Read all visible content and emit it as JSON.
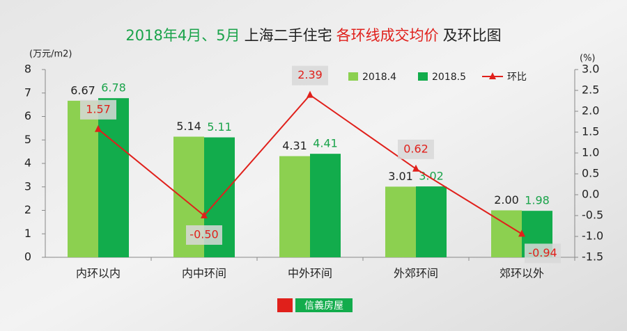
{
  "chart_data": {
    "type": "bar-line",
    "title": [
      "2018年4月、5月",
      "上海二手住宅",
      "各环线成交均价",
      "及环比图"
    ],
    "title_colors": [
      "#1aa34a",
      "#222222",
      "#e0201b",
      "#222222"
    ],
    "y_label": "(万元/m2)",
    "y2_label": "(%)",
    "categories": [
      "内环以内",
      "内中环间",
      "中外环间",
      "外郊环间",
      "郊环以外"
    ],
    "series": [
      {
        "name": "2018.4",
        "type": "bar",
        "color": "#8cd050",
        "label_color": "#222222",
        "values": [
          6.67,
          5.14,
          4.31,
          3.01,
          2.0
        ],
        "value_labels": [
          "6.67",
          "5.14",
          "4.31",
          "3.01",
          "2.00"
        ]
      },
      {
        "name": "2018.5",
        "type": "bar",
        "color": "#12ac4c",
        "label_color": "#1aa34a",
        "values": [
          6.78,
          5.11,
          4.41,
          3.02,
          1.98
        ],
        "value_labels": [
          "6.78",
          "5.11",
          "4.41",
          "3.02",
          "1.98"
        ]
      },
      {
        "name": "环比",
        "type": "line",
        "axis": "y2",
        "color": "#e0201b",
        "label_color": "#e0201b",
        "values": [
          1.57,
          -0.5,
          2.39,
          0.62,
          -0.94
        ],
        "value_labels": [
          "1.57",
          "-0.50",
          "2.39",
          "0.62",
          "-0.94"
        ]
      }
    ],
    "ylim": [
      0,
      8
    ],
    "yticks": [
      0,
      1,
      2,
      3,
      4,
      5,
      6,
      7,
      8
    ],
    "y2lim": [
      -1.5,
      3.0
    ],
    "y2ticks": [
      -1.5,
      {
        "value": -1,
        "label": "-1.0"
      },
      -0.5,
      {
        "value": 0,
        "label": "0.0"
      },
      0.5,
      {
        "value": 1,
        "label": "1.0"
      },
      1.5,
      {
        "value": 2,
        "label": "2.0"
      },
      2.5,
      {
        "value": 3,
        "label": "3.0"
      }
    ],
    "legend": "top-right",
    "logo": "信義房屋"
  }
}
